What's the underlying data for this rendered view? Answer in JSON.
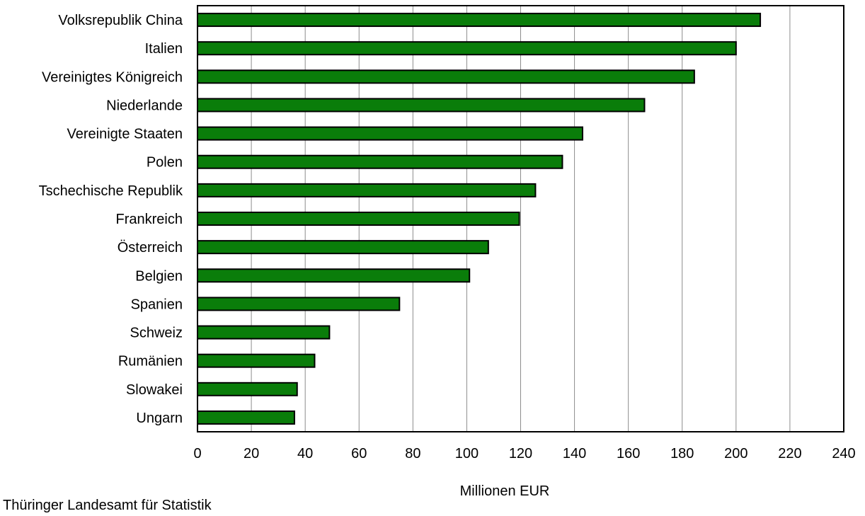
{
  "chart_data": {
    "type": "bar",
    "orientation": "horizontal",
    "categories": [
      "Volksrepublik China",
      "Italien",
      "Vereinigtes Königreich",
      "Niederlande",
      "Vereinigte Staaten",
      "Polen",
      "Tschechische Republik",
      "Frankreich",
      "Österreich",
      "Belgien",
      "Spanien",
      "Schweiz",
      "Rumänien",
      "Slowakei",
      "Ungarn"
    ],
    "values": [
      209,
      200,
      184.5,
      166,
      143,
      135.5,
      125.5,
      119.5,
      108,
      101,
      75,
      49,
      43.5,
      37,
      36
    ],
    "xlabel": "Millionen EUR",
    "ylabel": "",
    "xlim": [
      0,
      240
    ],
    "xticks": [
      "0",
      "20",
      "40",
      "60",
      "80",
      "100",
      "120",
      "140",
      "160",
      "180",
      "200",
      "220",
      "240"
    ],
    "grid": "vertical",
    "bar_color": "#0a7d0a"
  },
  "source": "Thüringer Landesamt für Statistik"
}
